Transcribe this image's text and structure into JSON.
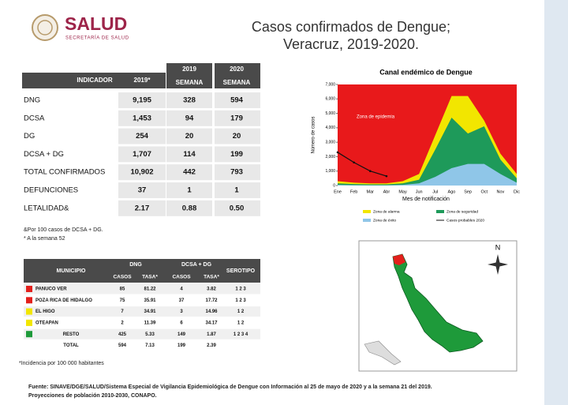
{
  "header": {
    "logo_title": "SALUD",
    "logo_subtitle": "SECRETARÍA DE SALUD",
    "title_lines": [
      "Casos confirmados de Dengue;",
      "Veracruz, 2019-2020."
    ]
  },
  "table1": {
    "columns": [
      [
        "INDICADOR"
      ],
      [
        "2019*"
      ],
      [
        "2019",
        "SEMANA"
      ],
      [
        "2020",
        "SEMANA"
      ]
    ],
    "rows": [
      [
        "DNG",
        "9,195",
        "328",
        "594"
      ],
      [
        "DCSA",
        "1,453",
        "94",
        "179"
      ],
      [
        "DG",
        "254",
        "20",
        "20"
      ],
      [
        "DCSA + DG",
        "1,707",
        "114",
        "199"
      ],
      [
        "TOTAL CONFIRMADOS",
        "10,902",
        "442",
        "793"
      ],
      [
        "DEFUNCIONES",
        "37",
        "1",
        "1"
      ],
      [
        "LETALIDAD&",
        "2.17",
        "0.88",
        "0.50"
      ]
    ]
  },
  "notes1": [
    "&Por 100 casos de DCSA + DG.",
    "* A la semana 52"
  ],
  "table2": {
    "group_headers": [
      "MUNICIPIO",
      "DNG",
      "DCSA + DG",
      "SEROTIPO"
    ],
    "sub_headers": [
      "CASOS",
      "TASA*",
      "CASOS",
      "TASA*"
    ],
    "rows": [
      {
        "color": "#e3201c",
        "cells": [
          "PANUCO VER",
          "85",
          "81.22",
          "4",
          "3.82",
          "1 2 3"
        ]
      },
      {
        "color": "#e3201c",
        "cells": [
          "POZA RICA DE HIDALGO",
          "75",
          "35.91",
          "37",
          "17.72",
          "1 2 3"
        ]
      },
      {
        "color": "#f2e600",
        "cells": [
          "EL HIGO",
          "7",
          "34.91",
          "3",
          "14.96",
          "1 2"
        ]
      },
      {
        "color": "#f2e600",
        "cells": [
          "OTEAPAN",
          "2",
          "11.39",
          "6",
          "34.17",
          "1 2"
        ]
      },
      {
        "color": "#1e9a3a",
        "cells": [
          "RESTO",
          "425",
          "5.33",
          "149",
          "1.87",
          "1 2 3 4"
        ]
      },
      {
        "cells": [
          "TOTAL",
          "594",
          "7.13",
          "199",
          "2.39"
        ]
      }
    ]
  },
  "note2": "*Incidencia por 100 000 habitantes",
  "chart_data": {
    "type": "area",
    "title": "Canal endémico de Dengue",
    "ylabel": "Número de casos",
    "xlabel": "Mes de notificación",
    "annotation": "Zona de epidemia",
    "plot_background": "#e8191b",
    "categories": [
      "Ene",
      "Feb",
      "Mar",
      "Abr",
      "May",
      "Jun",
      "Jul",
      "Ago",
      "Sep",
      "Oct",
      "Nov",
      "Dic"
    ],
    "ylim": [
      0,
      7000
    ],
    "yticks": [
      0,
      {
        "value": 1000,
        "label": "1,000"
      },
      {
        "value": 2000,
        "label": "2,000"
      },
      {
        "value": 3000,
        "label": "3,000"
      },
      {
        "value": 4000,
        "label": "4,000"
      },
      {
        "value": 5000,
        "label": "5,000"
      },
      {
        "value": 6000,
        "label": "6,000"
      },
      {
        "value": 7000,
        "label": "7,000"
      }
    ],
    "series": [
      {
        "name": "Zona de alarma",
        "color": "#f2e600",
        "kind": "area",
        "values": [
          300,
          200,
          150,
          150,
          300,
          800,
          3500,
          6200,
          6200,
          4500,
          2200,
          800
        ]
      },
      {
        "name": "Zona de seguridad",
        "color": "#1e9a5a",
        "kind": "area",
        "values": [
          150,
          100,
          80,
          80,
          150,
          400,
          2500,
          4700,
          3600,
          4100,
          1800,
          500
        ]
      },
      {
        "name": "Zona de éxito",
        "color": "#8fc6e8",
        "kind": "area",
        "values": [
          50,
          30,
          20,
          20,
          50,
          150,
          600,
          1200,
          1500,
          1500,
          800,
          200
        ]
      },
      {
        "name": "Casos probables 2020",
        "color": "#111111",
        "kind": "line",
        "values": [
          2300,
          1600,
          1000,
          650,
          null,
          null,
          null,
          null,
          null,
          null,
          null,
          null
        ]
      }
    ]
  },
  "map": {
    "north": "N"
  },
  "footer": [
    "Fuente: SINAVE/DGE/SALUD/Sistema Especial de Vigilancia Epidemiológica de Dengue con Información al 25 de mayo de 2020 y a la semana 21 del 2019.",
    "Proyecciones de población 2010-2030, CONAPO."
  ]
}
